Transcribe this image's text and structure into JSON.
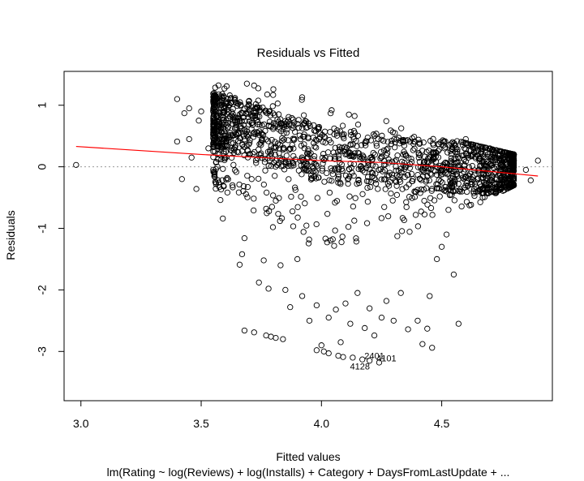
{
  "chart_data": {
    "type": "scatter",
    "title": "Residuals vs Fitted",
    "xlabel": "Fitted values",
    "ylabel": "Residuals",
    "subtitle": "lm(Rating ~ log(Reviews) + log(Installs) + Category + DaysFromLastUpdate +  ...",
    "xlim": [
      2.93,
      4.96
    ],
    "ylim": [
      -3.8,
      1.55
    ],
    "x_ticks": [
      "3.0",
      "3.5",
      "4.0",
      "4.5"
    ],
    "y_ticks": [
      "1",
      "0",
      "-1",
      "-2",
      "-3"
    ],
    "x_tick_values": [
      3.0,
      3.5,
      4.0,
      4.5
    ],
    "y_tick_values": [
      1,
      0,
      -1,
      -2,
      -3
    ],
    "grid": false,
    "reference_line": {
      "y": 0,
      "style": "dotted",
      "color": "#999999"
    },
    "smoother": {
      "color": "#ff0000",
      "x": [
        2.98,
        3.5,
        4.0,
        4.25,
        4.5,
        4.9
      ],
      "y": [
        0.33,
        0.2,
        0.1,
        0.07,
        0.0,
        -0.15
      ]
    },
    "point_color": "#000000",
    "points": [
      [
        2.98,
        0.03
      ],
      [
        3.4,
        1.1
      ],
      [
        3.43,
        0.87
      ],
      [
        3.45,
        0.95
      ],
      [
        3.4,
        0.41
      ],
      [
        3.42,
        -0.2
      ],
      [
        3.45,
        0.45
      ],
      [
        3.46,
        0.15
      ],
      [
        3.48,
        -0.36
      ],
      [
        3.49,
        0.75
      ],
      [
        3.5,
        0.9
      ],
      [
        3.53,
        0.3
      ],
      [
        3.56,
        1.08
      ],
      [
        3.57,
        -0.22
      ],
      [
        3.58,
        -0.54
      ],
      [
        3.59,
        -0.84
      ],
      [
        3.62,
        0.82
      ],
      [
        3.62,
        0.55
      ],
      [
        3.63,
        -0.3
      ],
      [
        3.64,
        0.75
      ],
      [
        3.66,
        -1.59
      ],
      [
        3.67,
        -1.42
      ],
      [
        3.68,
        -1.16
      ],
      [
        3.69,
        1.35
      ],
      [
        3.71,
        -0.2
      ],
      [
        3.72,
        1.32
      ],
      [
        3.74,
        -1.88
      ],
      [
        3.76,
        -1.52
      ],
      [
        3.78,
        -1.98
      ],
      [
        3.8,
        1.26
      ],
      [
        3.83,
        -1.6
      ],
      [
        3.85,
        -2.0
      ],
      [
        3.87,
        -2.28
      ],
      [
        3.9,
        -1.5
      ],
      [
        3.92,
        -2.1
      ],
      [
        3.95,
        -2.5
      ],
      [
        3.98,
        -2.25
      ],
      [
        4.0,
        -2.9
      ],
      [
        4.03,
        -2.45
      ],
      [
        4.06,
        -2.32
      ],
      [
        4.08,
        -2.85
      ],
      [
        4.1,
        -2.22
      ],
      [
        4.12,
        -2.55
      ],
      [
        4.15,
        -2.05
      ],
      [
        4.18,
        -2.62
      ],
      [
        4.2,
        -2.3
      ],
      [
        4.22,
        -2.74
      ],
      [
        4.25,
        -2.45
      ],
      [
        4.27,
        -2.18
      ],
      [
        4.3,
        -2.5
      ],
      [
        4.33,
        -2.05
      ],
      [
        4.36,
        -2.64
      ],
      [
        4.4,
        -2.5
      ],
      [
        4.42,
        -2.88
      ],
      [
        4.45,
        -2.1
      ],
      [
        4.48,
        -1.5
      ],
      [
        4.5,
        -1.3
      ],
      [
        4.52,
        -1.1
      ],
      [
        4.55,
        -1.75
      ],
      [
        4.57,
        -2.55
      ],
      [
        4.6,
        0.45
      ],
      [
        4.63,
        0.2
      ],
      [
        4.65,
        -0.2
      ],
      [
        4.67,
        -0.5
      ],
      [
        4.7,
        0.3
      ],
      [
        4.73,
        0.0
      ],
      [
        4.75,
        -0.27
      ],
      [
        4.78,
        0.1
      ],
      [
        4.8,
        -0.18
      ],
      [
        4.85,
        -0.05
      ],
      [
        4.87,
        -0.22
      ],
      [
        4.9,
        0.1
      ],
      [
        3.68,
        -2.66
      ],
      [
        3.72,
        -2.69
      ],
      [
        3.77,
        -2.74
      ],
      [
        3.79,
        -2.76
      ],
      [
        3.81,
        -2.78
      ],
      [
        3.84,
        -2.8
      ],
      [
        3.98,
        -2.98
      ],
      [
        4.01,
        -3.0
      ],
      [
        4.03,
        -3.03
      ],
      [
        4.07,
        -3.07
      ],
      [
        4.09,
        -3.09
      ],
      [
        4.13,
        -3.1
      ],
      [
        4.17,
        -3.13
      ],
      [
        4.2,
        -3.15
      ],
      [
        4.24,
        -3.18
      ],
      [
        4.46,
        -2.94
      ],
      [
        4.44,
        -2.63
      ]
    ],
    "dense_region": {
      "x_range": [
        3.55,
        4.8
      ],
      "upper_boundary": [
        [
          3.55,
          1.35
        ],
        [
          3.8,
          1.25
        ],
        [
          4.0,
          1.05
        ],
        [
          4.3,
          0.72
        ],
        [
          4.5,
          0.48
        ],
        [
          4.8,
          0.2
        ]
      ],
      "lower_boundary": [
        [
          3.55,
          -0.35
        ],
        [
          3.8,
          -1.0
        ],
        [
          4.0,
          -1.35
        ],
        [
          4.3,
          -1.2
        ],
        [
          4.5,
          -0.9
        ],
        [
          4.8,
          -0.3
        ]
      ],
      "core_half_width": 0.45
    },
    "annotations": [
      {
        "text": "2401",
        "x": 4.22,
        "y": -3.12
      },
      {
        "text": "4101",
        "x": 4.27,
        "y": -3.16
      },
      {
        "text": "4128",
        "x": 4.16,
        "y": -3.29
      }
    ]
  }
}
